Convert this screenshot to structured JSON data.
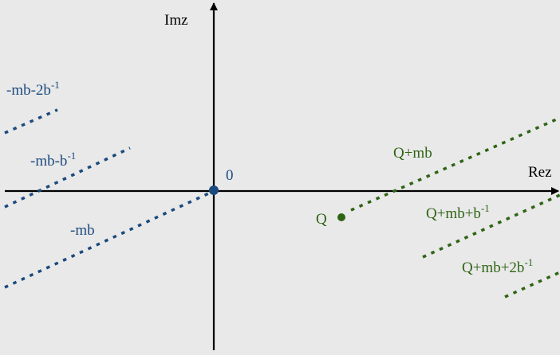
{
  "axes": {
    "real_label": "Rez",
    "imag_label": "Imz",
    "origin_label": "0"
  },
  "point": {
    "label": "Q"
  },
  "green_lines": [
    {
      "label_main": "Q+mb",
      "label_sup": ""
    },
    {
      "label_main": "Q+mb+b",
      "label_sup": "-1"
    },
    {
      "label_main": "Q+mb+2b",
      "label_sup": "-1"
    }
  ],
  "blue_lines": [
    {
      "label_main": "-mb",
      "label_sup": ""
    },
    {
      "label_main": "-mb-b",
      "label_sup": "-1"
    },
    {
      "label_main": "-mb-2b",
      "label_sup": "-1"
    }
  ],
  "colors": {
    "background": "#e9e9e9",
    "axis": "#000000",
    "blue": "#1b4a7e",
    "green": "#2e6414"
  }
}
